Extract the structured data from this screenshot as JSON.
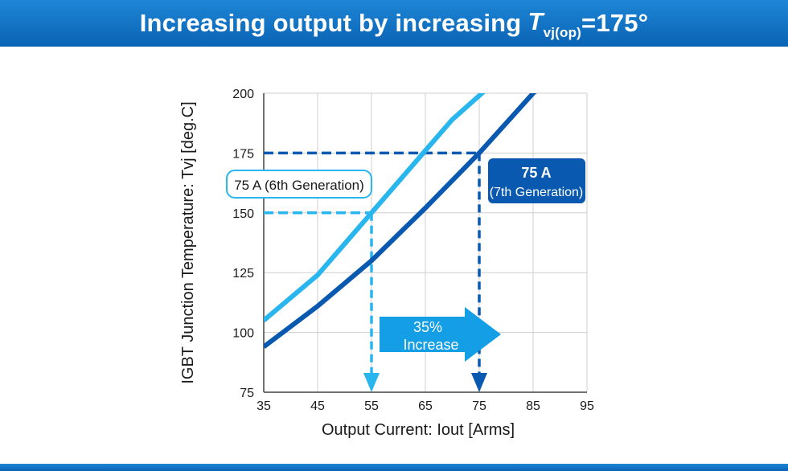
{
  "banner": {
    "title_prefix": "Increasing output by increasing",
    "symbol": "T",
    "subscript": "vj(op)",
    "suffix": "=175°"
  },
  "colors": {
    "banner": "#0a6fc4",
    "series_6th": "#29b6ee",
    "series_7th": "#0a59b0",
    "grid": "#cfcfcf"
  },
  "chart_data": {
    "type": "line",
    "title": "Increasing output by increasing Tvj(op)=175°",
    "xlabel": "Output Current: Iout [Arms]",
    "ylabel": "IGBT Junction Temperature: Tvj [deg.C]",
    "xlim": [
      35,
      95
    ],
    "ylim": [
      75,
      200
    ],
    "xticks": [
      35,
      45,
      55,
      65,
      75,
      85,
      95
    ],
    "yticks": [
      75,
      100,
      125,
      150,
      175,
      200
    ],
    "grid": true,
    "series": [
      {
        "name": "75 A (6th Generation)",
        "color": "#29b6ee",
        "x": [
          35,
          40,
          45,
          50,
          55,
          60,
          65,
          70,
          75,
          77
        ],
        "y": [
          105,
          114.5,
          124,
          137,
          150,
          163,
          176,
          189,
          199,
          203
        ]
      },
      {
        "name": "75 A (7th Generation)",
        "color": "#0a59b0",
        "x": [
          35,
          45,
          55,
          65,
          75,
          85,
          87
        ],
        "y": [
          94,
          111,
          130,
          152,
          175,
          200,
          204
        ]
      }
    ],
    "reference_lines": [
      {
        "series": "75 A (6th Generation)",
        "x": 55,
        "y": 150
      },
      {
        "series": "75 A (7th Generation)",
        "x": 75,
        "y": 175
      }
    ],
    "annotations": {
      "label_6th": "75 A (6th Generation)",
      "label_7th_line1": "75 A",
      "label_7th_line2": "(7th Generation)",
      "arrow_line1": "35%",
      "arrow_line2": "Increase"
    }
  }
}
